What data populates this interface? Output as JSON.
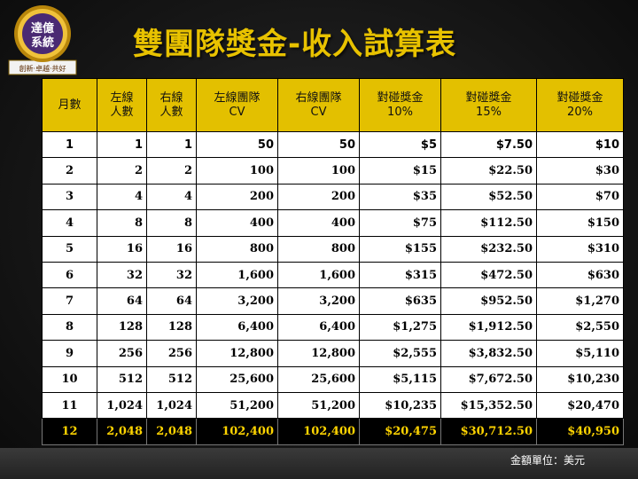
{
  "logo": {
    "line1": "達億",
    "line2": "系統",
    "motto": "創新·卓越·共好"
  },
  "title": "雙團隊獎金-收入試算表",
  "table": {
    "headers": [
      {
        "l1": "月數",
        "l2": ""
      },
      {
        "l1": "左線",
        "l2": "人數"
      },
      {
        "l1": "右線",
        "l2": "人數"
      },
      {
        "l1": "左線團隊",
        "l2": "CV"
      },
      {
        "l1": "右線團隊",
        "l2": "CV"
      },
      {
        "l1": "對碰獎金",
        "l2": "10%"
      },
      {
        "l1": "對碰獎金",
        "l2": "15%"
      },
      {
        "l1": "對碰獎金",
        "l2": "20%"
      }
    ],
    "rows": [
      [
        "1",
        "1",
        "1",
        "50",
        "50",
        "$5",
        "$7.50",
        "$10"
      ],
      [
        "2",
        "2",
        "2",
        "100",
        "100",
        "$15",
        "$22.50",
        "$30"
      ],
      [
        "3",
        "4",
        "4",
        "200",
        "200",
        "$35",
        "$52.50",
        "$70"
      ],
      [
        "4",
        "8",
        "8",
        "400",
        "400",
        "$75",
        "$112.50",
        "$150"
      ],
      [
        "5",
        "16",
        "16",
        "800",
        "800",
        "$155",
        "$232.50",
        "$310"
      ],
      [
        "6",
        "32",
        "32",
        "1,600",
        "1,600",
        "$315",
        "$472.50",
        "$630"
      ],
      [
        "7",
        "64",
        "64",
        "3,200",
        "3,200",
        "$635",
        "$952.50",
        "$1,270"
      ],
      [
        "8",
        "128",
        "128",
        "6,400",
        "6,400",
        "$1,275",
        "$1,912.50",
        "$2,550"
      ],
      [
        "9",
        "256",
        "256",
        "12,800",
        "12,800",
        "$2,555",
        "$3,832.50",
        "$5,110"
      ],
      [
        "10",
        "512",
        "512",
        "25,600",
        "25,600",
        "$5,115",
        "$7,672.50",
        "$10,230"
      ],
      [
        "11",
        "1,024",
        "1,024",
        "51,200",
        "51,200",
        "$10,235",
        "$15,352.50",
        "$20,470"
      ],
      [
        "12",
        "2,048",
        "2,048",
        "102,400",
        "102,400",
        "$20,475",
        "$30,712.50",
        "$40,950"
      ]
    ]
  },
  "note": "金額單位：美元",
  "colors": {
    "accent": "#e3c000",
    "highlight_text": "#ffd400",
    "background": "#161616"
  }
}
